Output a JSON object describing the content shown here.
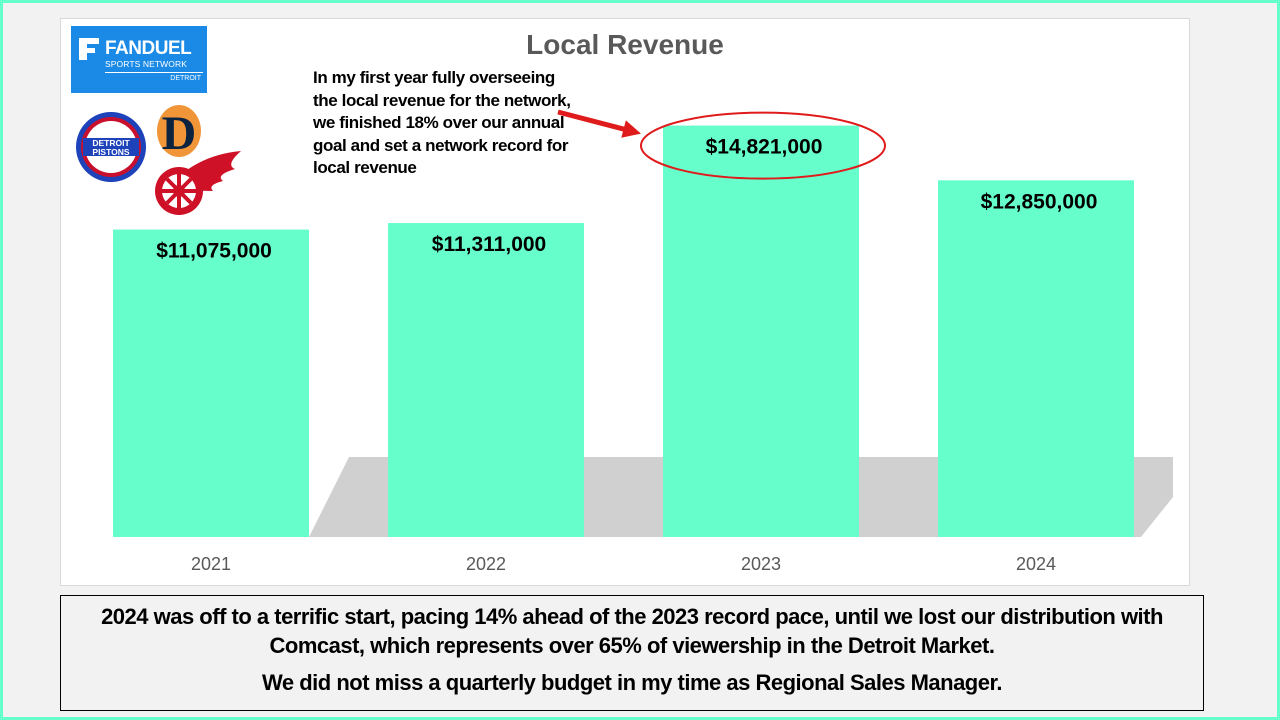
{
  "chart_data": {
    "type": "bar",
    "title": "Local Revenue",
    "categories": [
      "2021",
      "2022",
      "2023",
      "2024"
    ],
    "values": [
      11075000,
      11311000,
      14821000,
      12850000
    ],
    "data_labels": [
      "$11,075,000",
      "$11,311,000",
      "$14,821,000",
      "$12,850,000"
    ],
    "ylim": [
      0,
      16500000
    ],
    "xlabel": "",
    "ylabel": "",
    "grid": false,
    "bar_color": "#66ffcc",
    "highlight_color": "#e01b1b",
    "annotation": "In my first year fully overseeing the local revenue for the network, we finished 18% over our annual goal and set a network record for local revenue"
  },
  "logos": {
    "fanduel_brand": "FANDUEL",
    "fanduel_network": "SPORTS NETWORK",
    "fanduel_city": "DETROIT",
    "pistons_top": "DETROIT",
    "pistons_bottom": "PISTONS",
    "tigers_letter": "D"
  },
  "caption": {
    "line1": "2024 was off to a terrific start, pacing 14% ahead of the 2023 record pace, until we lost our distribution with Comcast, which represents over 65% of viewership in the Detroit Market.",
    "line2": "We did not miss a quarterly budget in my time as Regional Sales Manager."
  },
  "colors": {
    "frame": "#66ffcc",
    "fanduel_blue": "#1a8ae6",
    "pistons_blue": "#1d42ba",
    "pistons_red": "#c8102e",
    "tigers_navy": "#0c2340",
    "red_wings_red": "#ce1126"
  }
}
